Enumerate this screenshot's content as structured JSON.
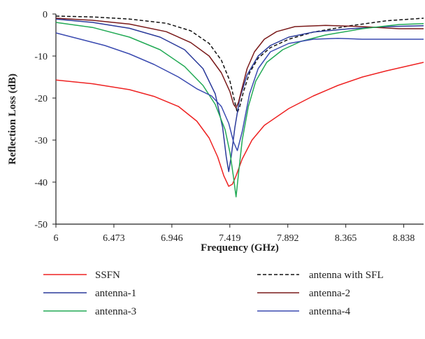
{
  "chart_data": {
    "type": "line",
    "xlabel": "Frequency (GHz)",
    "ylabel": "Reflection Loss (dB)",
    "xlim": [
      6,
      9.0
    ],
    "ylim": [
      -50,
      0
    ],
    "xticks": [
      "6",
      "6.473",
      "6.946",
      "7.419",
      "7.892",
      "8.365",
      "8.838"
    ],
    "xtick_values": [
      6,
      6.473,
      6.946,
      7.419,
      7.892,
      8.365,
      8.838
    ],
    "yticks": [
      "0",
      "-10",
      "-20",
      "-30",
      "-40",
      "-50"
    ],
    "ytick_values": [
      0,
      -10,
      -20,
      -30,
      -40,
      -50
    ],
    "grid": false,
    "legend_position": "bottom",
    "series": [
      {
        "name": "SSFN",
        "color": "#ee2222",
        "dash": "solid",
        "x": [
          6.0,
          6.3,
          6.6,
          6.8,
          7.0,
          7.15,
          7.25,
          7.32,
          7.37,
          7.41,
          7.44,
          7.47,
          7.52,
          7.6,
          7.7,
          7.9,
          8.1,
          8.3,
          8.5,
          8.7,
          9.0
        ],
        "y": [
          -15.7,
          -16.6,
          -18.0,
          -19.6,
          -22.0,
          -25.5,
          -29.5,
          -34.0,
          -38.5,
          -41.0,
          -40.5,
          -38.5,
          -34.5,
          -30.0,
          -26.5,
          -22.5,
          -19.5,
          -17.0,
          -15.0,
          -13.5,
          -11.5
        ]
      },
      {
        "name": "antenna with SFL",
        "color": "#111111",
        "dash": "dashed",
        "x": [
          6.0,
          6.3,
          6.6,
          6.9,
          7.1,
          7.25,
          7.35,
          7.42,
          7.46,
          7.48,
          7.5,
          7.53,
          7.58,
          7.65,
          7.75,
          7.9,
          8.1,
          8.4,
          8.7,
          9.0
        ],
        "y": [
          -0.5,
          -0.7,
          -1.2,
          -2.2,
          -4.0,
          -7.0,
          -11.0,
          -16.0,
          -21.0,
          -23.5,
          -22.0,
          -18.5,
          -14.0,
          -10.5,
          -8.0,
          -6.0,
          -4.3,
          -2.8,
          -1.6,
          -1.0
        ]
      },
      {
        "name": "antenna-1",
        "color": "#2a3a9a",
        "dash": "solid",
        "x": [
          6.0,
          6.3,
          6.6,
          6.85,
          7.05,
          7.2,
          7.3,
          7.36,
          7.39,
          7.41,
          7.43,
          7.46,
          7.5,
          7.56,
          7.65,
          7.75,
          7.9,
          8.1,
          8.4,
          8.7,
          9.0
        ],
        "y": [
          -1.2,
          -2.0,
          -3.4,
          -5.5,
          -8.5,
          -13.0,
          -19.0,
          -27.0,
          -34.0,
          -37.5,
          -34.0,
          -27.0,
          -20.0,
          -14.5,
          -10.0,
          -7.5,
          -5.5,
          -4.3,
          -3.5,
          -3.0,
          -2.8
        ]
      },
      {
        "name": "antenna-2",
        "color": "#7a1a1a",
        "dash": "solid",
        "x": [
          6.0,
          6.3,
          6.6,
          6.9,
          7.1,
          7.25,
          7.35,
          7.42,
          7.45,
          7.47,
          7.49,
          7.52,
          7.56,
          7.62,
          7.7,
          7.8,
          7.95,
          8.2,
          8.5,
          8.8,
          9.0
        ],
        "y": [
          -1.0,
          -1.5,
          -2.4,
          -4.2,
          -6.8,
          -10.0,
          -14.0,
          -18.5,
          -21.5,
          -22.3,
          -21.0,
          -17.5,
          -13.0,
          -9.0,
          -6.0,
          -4.2,
          -3.0,
          -2.7,
          -3.0,
          -3.5,
          -3.5
        ]
      },
      {
        "name": "antenna-3",
        "color": "#22aa55",
        "dash": "solid",
        "x": [
          6.0,
          6.3,
          6.6,
          6.85,
          7.05,
          7.2,
          7.3,
          7.38,
          7.42,
          7.45,
          7.47,
          7.49,
          7.52,
          7.57,
          7.63,
          7.72,
          7.85,
          8.0,
          8.2,
          8.5,
          8.8,
          9.0
        ],
        "y": [
          -2.0,
          -3.2,
          -5.5,
          -8.5,
          -12.5,
          -17.0,
          -21.5,
          -27.5,
          -33.0,
          -39.0,
          -43.5,
          -38.0,
          -30.0,
          -22.0,
          -16.0,
          -11.5,
          -8.5,
          -6.5,
          -5.0,
          -3.5,
          -2.5,
          -2.3
        ]
      },
      {
        "name": "antenna-4",
        "color": "#3a4ab0",
        "dash": "solid",
        "x": [
          6.0,
          6.2,
          6.4,
          6.6,
          6.8,
          7.0,
          7.15,
          7.27,
          7.35,
          7.41,
          7.45,
          7.48,
          7.52,
          7.58,
          7.65,
          7.75,
          7.9,
          8.1,
          8.3,
          8.5,
          8.7,
          9.0
        ],
        "y": [
          -4.5,
          -6.0,
          -7.5,
          -9.5,
          -12.0,
          -15.0,
          -17.8,
          -19.5,
          -22.0,
          -26.0,
          -30.5,
          -32.5,
          -28.0,
          -19.0,
          -13.0,
          -9.0,
          -7.0,
          -6.0,
          -5.8,
          -6.0,
          -6.0,
          -6.0
        ]
      }
    ]
  }
}
